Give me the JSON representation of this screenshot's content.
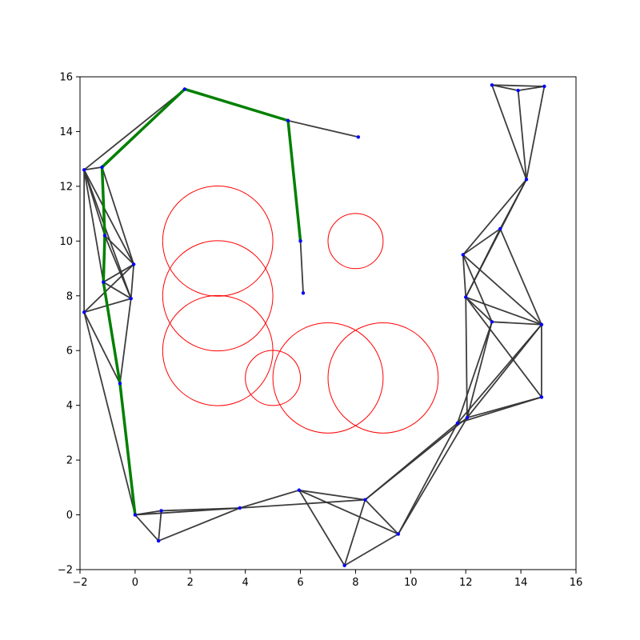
{
  "chart_data": {
    "type": "scatter",
    "title": "",
    "xlabel": "",
    "ylabel": "",
    "xlim": [
      -2,
      16
    ],
    "ylim": [
      -2,
      16
    ],
    "xticks": [
      -2,
      0,
      2,
      4,
      6,
      8,
      10,
      12,
      14,
      16
    ],
    "yticks": [
      -2,
      0,
      2,
      4,
      6,
      8,
      10,
      12,
      14,
      16
    ],
    "grid": false,
    "colors": {
      "obstacle": "#ff0000",
      "edge": "#333333",
      "node": "#0000ff",
      "path": "#008000"
    },
    "obstacles": [
      {
        "cx": 3,
        "cy": 10,
        "r": 2
      },
      {
        "cx": 3,
        "cy": 8,
        "r": 2
      },
      {
        "cx": 3,
        "cy": 6,
        "r": 2
      },
      {
        "cx": 5,
        "cy": 5,
        "r": 1
      },
      {
        "cx": 7,
        "cy": 5,
        "r": 2
      },
      {
        "cx": 9,
        "cy": 5,
        "r": 2
      },
      {
        "cx": 8,
        "cy": 10,
        "r": 1
      }
    ],
    "nodes": [
      [
        0,
        0
      ],
      [
        0.95,
        0.15
      ],
      [
        0.85,
        -0.95
      ],
      [
        3.8,
        0.25
      ],
      [
        5.95,
        0.9
      ],
      [
        7.6,
        -1.85
      ],
      [
        8.35,
        0.55
      ],
      [
        9.55,
        -0.7
      ],
      [
        11.7,
        3.35
      ],
      [
        12.05,
        3.55
      ],
      [
        14.75,
        4.3
      ],
      [
        12.95,
        7.05
      ],
      [
        14.75,
        6.95
      ],
      [
        12,
        7.95
      ],
      [
        11.9,
        9.5
      ],
      [
        13.25,
        10.45
      ],
      [
        14.2,
        12.25
      ],
      [
        12.95,
        15.7
      ],
      [
        13.9,
        15.5
      ],
      [
        14.85,
        15.65
      ],
      [
        -1.85,
        7.4
      ],
      [
        -0.55,
        4.8
      ],
      [
        -0.15,
        7.9
      ],
      [
        -0.05,
        9.15
      ],
      [
        -1.1,
        10.2
      ],
      [
        -1.15,
        8.5
      ],
      [
        -1.2,
        12.7
      ],
      [
        -1.85,
        12.6
      ],
      [
        1.8,
        15.55
      ],
      [
        5.55,
        14.4
      ],
      [
        8.1,
        13.8
      ],
      [
        6,
        10
      ],
      [
        6.1,
        8.1
      ]
    ],
    "edges": [
      [
        0,
        1
      ],
      [
        0,
        2
      ],
      [
        0,
        3
      ],
      [
        1,
        2
      ],
      [
        1,
        3
      ],
      [
        2,
        3
      ],
      [
        3,
        4
      ],
      [
        3,
        6
      ],
      [
        4,
        6
      ],
      [
        4,
        5
      ],
      [
        4,
        7
      ],
      [
        5,
        6
      ],
      [
        5,
        7
      ],
      [
        6,
        7
      ],
      [
        6,
        8
      ],
      [
        6,
        9
      ],
      [
        7,
        8
      ],
      [
        7,
        9
      ],
      [
        8,
        10
      ],
      [
        9,
        10
      ],
      [
        8,
        12
      ],
      [
        9,
        12
      ],
      [
        8,
        11
      ],
      [
        9,
        11
      ],
      [
        9,
        13
      ],
      [
        10,
        12
      ],
      [
        10,
        13
      ],
      [
        11,
        12
      ],
      [
        11,
        13
      ],
      [
        11,
        14
      ],
      [
        12,
        13
      ],
      [
        12,
        14
      ],
      [
        12,
        15
      ],
      [
        13,
        14
      ],
      [
        13,
        15
      ],
      [
        14,
        15
      ],
      [
        14,
        16
      ],
      [
        13,
        16
      ],
      [
        15,
        16
      ],
      [
        16,
        17
      ],
      [
        16,
        18
      ],
      [
        16,
        19
      ],
      [
        17,
        18
      ],
      [
        17,
        19
      ],
      [
        18,
        19
      ],
      [
        0,
        21
      ],
      [
        0,
        20
      ],
      [
        20,
        21
      ],
      [
        20,
        22
      ],
      [
        20,
        23
      ],
      [
        20,
        27
      ],
      [
        21,
        22
      ],
      [
        21,
        25
      ],
      [
        22,
        23
      ],
      [
        22,
        24
      ],
      [
        22,
        25
      ],
      [
        22,
        27
      ],
      [
        23,
        24
      ],
      [
        23,
        25
      ],
      [
        23,
        26
      ],
      [
        23,
        27
      ],
      [
        24,
        26
      ],
      [
        24,
        27
      ],
      [
        25,
        27
      ],
      [
        26,
        27
      ],
      [
        27,
        28
      ],
      [
        28,
        29
      ],
      [
        29,
        30
      ],
      [
        31,
        32
      ]
    ],
    "path": [
      [
        0,
        0
      ],
      [
        -0.55,
        4.8
      ],
      [
        -1.15,
        8.5
      ],
      [
        -1.1,
        10.2
      ],
      [
        -1.2,
        12.7
      ],
      [
        1.8,
        15.55
      ],
      [
        5.55,
        14.4
      ],
      [
        6,
        10
      ]
    ]
  }
}
